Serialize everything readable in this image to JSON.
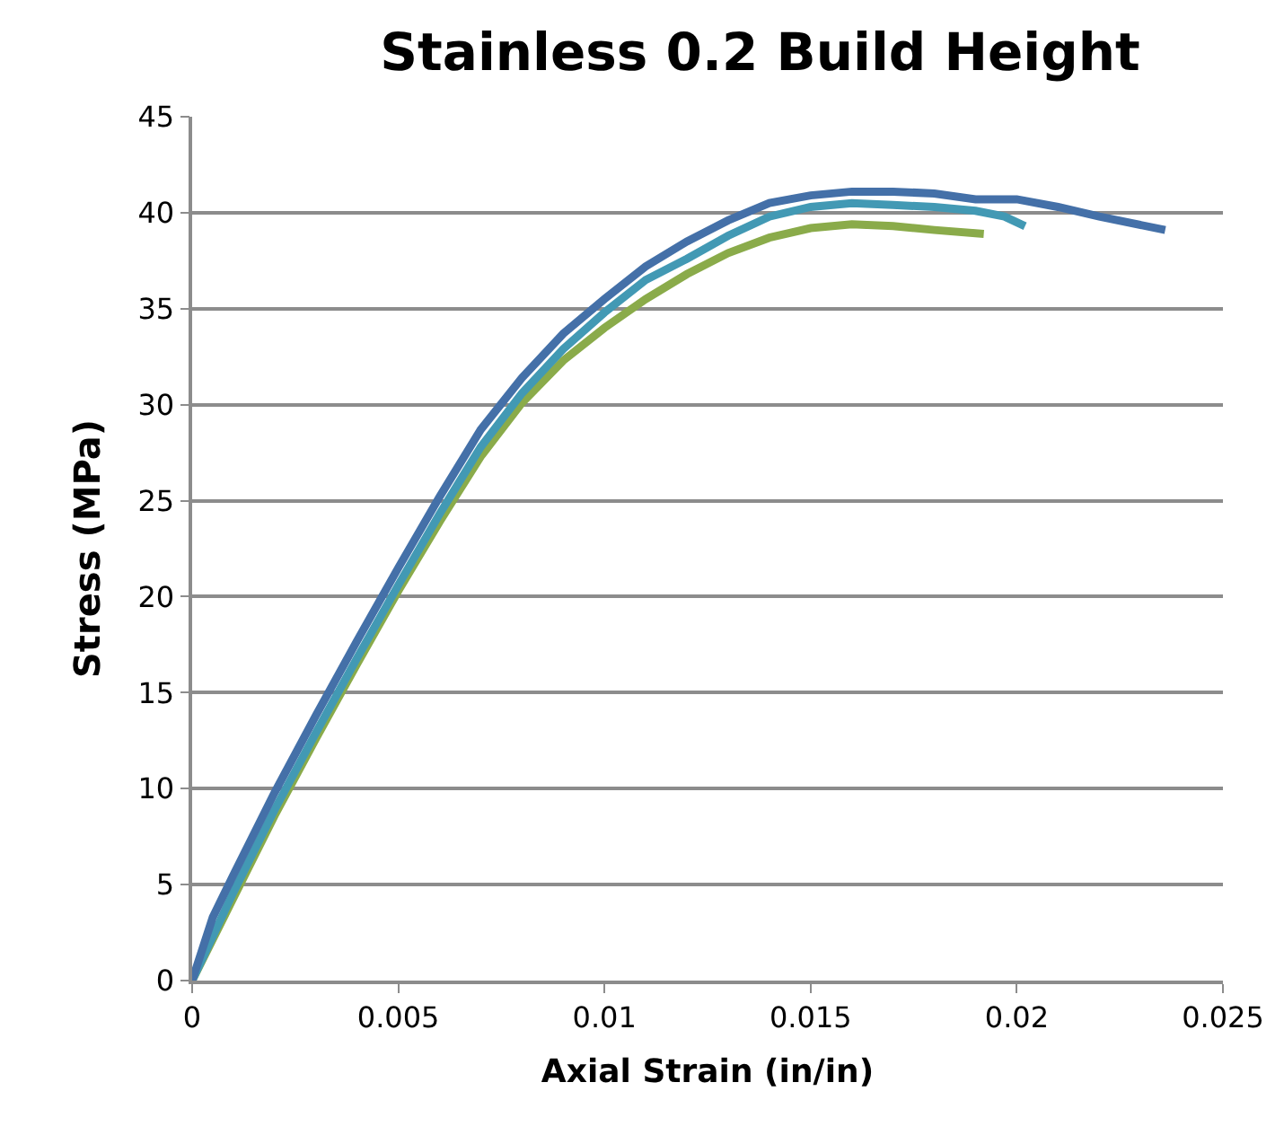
{
  "chart_data": {
    "type": "line",
    "title": "Stainless 0.2 Build Height",
    "xlabel": "Axial Strain (in/in)",
    "ylabel": "Stress (MPa)",
    "xlim": [
      0,
      0.025
    ],
    "xticks": [
      0,
      0.005,
      0.01,
      0.015,
      0.02,
      0.025
    ],
    "ylim": [
      0,
      45
    ],
    "yticks": [
      0,
      5,
      10,
      15,
      20,
      25,
      30,
      35,
      40,
      45
    ],
    "grid": "y",
    "marker": "none",
    "line_style": "solid",
    "series": [
      {
        "color": "#8aab4a",
        "x": [
          0,
          0.001,
          0.002,
          0.003,
          0.004,
          0.005,
          0.006,
          0.007,
          0.008,
          0.009,
          0.01,
          0.011,
          0.012,
          0.013,
          0.014,
          0.015,
          0.016,
          0.017,
          0.018,
          0.0192
        ],
        "values": [
          0,
          4.3,
          8.6,
          12.6,
          16.5,
          20.3,
          23.9,
          27.3,
          30.1,
          32.3,
          34.0,
          35.5,
          36.8,
          37.9,
          38.7,
          39.2,
          39.4,
          39.3,
          39.1,
          38.9
        ]
      },
      {
        "color": "#4299b4",
        "x": [
          0,
          0.001,
          0.002,
          0.003,
          0.004,
          0.005,
          0.006,
          0.007,
          0.008,
          0.009,
          0.01,
          0.011,
          0.012,
          0.013,
          0.014,
          0.015,
          0.016,
          0.017,
          0.018,
          0.019,
          0.0197,
          0.0202
        ],
        "values": [
          0,
          4.6,
          8.9,
          12.9,
          16.8,
          20.6,
          24.3,
          27.8,
          30.6,
          32.9,
          34.8,
          36.5,
          37.6,
          38.8,
          39.8,
          40.3,
          40.5,
          40.4,
          40.3,
          40.1,
          39.8,
          39.3
        ]
      },
      {
        "color": "#4470a8",
        "x": [
          0,
          0.0005,
          0.001,
          0.002,
          0.003,
          0.004,
          0.005,
          0.006,
          0.007,
          0.008,
          0.009,
          0.01,
          0.011,
          0.012,
          0.013,
          0.014,
          0.015,
          0.016,
          0.017,
          0.018,
          0.019,
          0.02,
          0.021,
          0.022,
          0.0236
        ],
        "values": [
          0,
          3.3,
          5.5,
          9.8,
          13.8,
          17.7,
          21.5,
          25.2,
          28.7,
          31.4,
          33.7,
          35.5,
          37.2,
          38.5,
          39.6,
          40.5,
          40.9,
          41.1,
          41.1,
          41.0,
          40.7,
          40.7,
          40.3,
          39.8,
          39.1
        ]
      }
    ]
  }
}
